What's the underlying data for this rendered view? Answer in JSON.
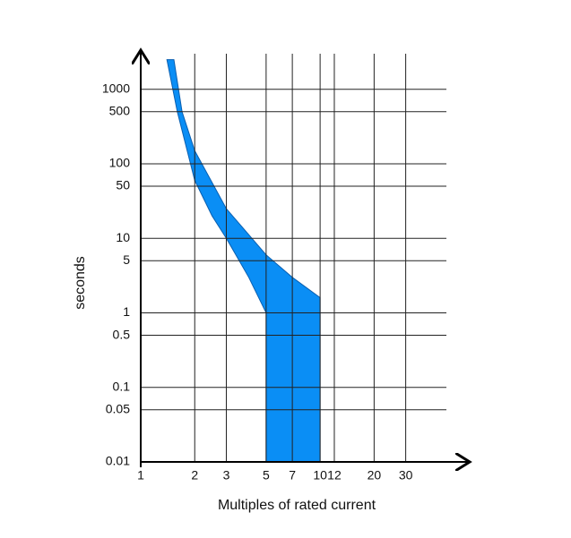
{
  "chart_data": {
    "type": "band",
    "x_label": "Multiples of rated current",
    "y_label": "seconds",
    "xlog": true,
    "ylog": true,
    "grid": true,
    "color": "#0a8ef5",
    "xlim": [
      1,
      50
    ],
    "ylim": [
      0.01,
      3000
    ],
    "xticks": [
      1,
      2,
      3,
      5,
      7,
      10,
      12,
      20,
      30
    ],
    "yticks": [
      0.01,
      0.05,
      0.1,
      0.5,
      1,
      5,
      10,
      50,
      100,
      500,
      1000
    ],
    "series": [
      {
        "x": [
          1.4,
          1.6,
          2,
          2.5,
          3,
          4,
          5,
          5
        ],
        "values": [
          2500,
          500,
          60,
          20,
          10,
          3,
          1,
          0.01
        ]
      },
      {
        "x": [
          10,
          10,
          7,
          5,
          3,
          2,
          1.7,
          1.53
        ],
        "values": [
          0.01,
          1.6,
          3,
          6,
          25,
          150,
          500,
          2500
        ]
      }
    ]
  }
}
